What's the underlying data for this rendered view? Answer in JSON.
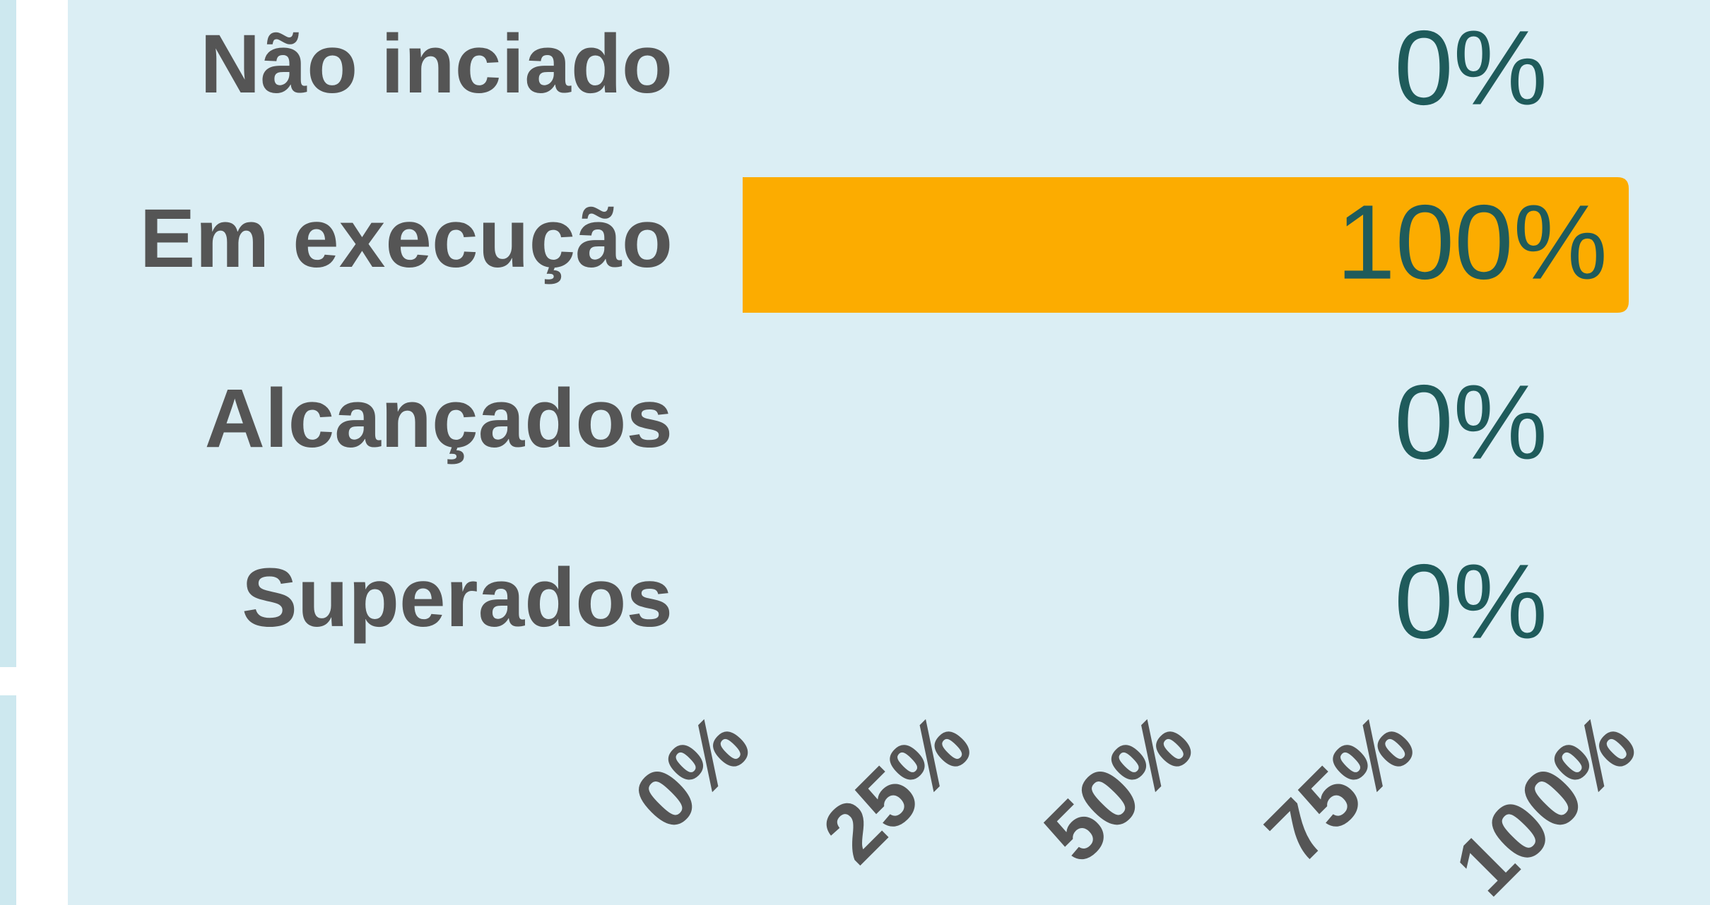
{
  "chart_data": {
    "type": "bar",
    "orientation": "horizontal",
    "categories": [
      "Não inciado",
      "Em execução",
      "Alcançados",
      "Superados"
    ],
    "values": [
      0,
      100,
      0,
      0
    ],
    "value_labels": [
      "0%",
      "100%",
      "0%",
      "0%"
    ],
    "color": "#fcac00",
    "xlim": [
      0,
      100
    ],
    "xticks": [
      {
        "value": 0,
        "label": "0%"
      },
      {
        "value": 25,
        "label": "25%"
      },
      {
        "value": 50,
        "label": "50%"
      },
      {
        "value": 75,
        "label": "75%"
      },
      {
        "value": 100,
        "label": "100%"
      }
    ],
    "grid": false
  }
}
